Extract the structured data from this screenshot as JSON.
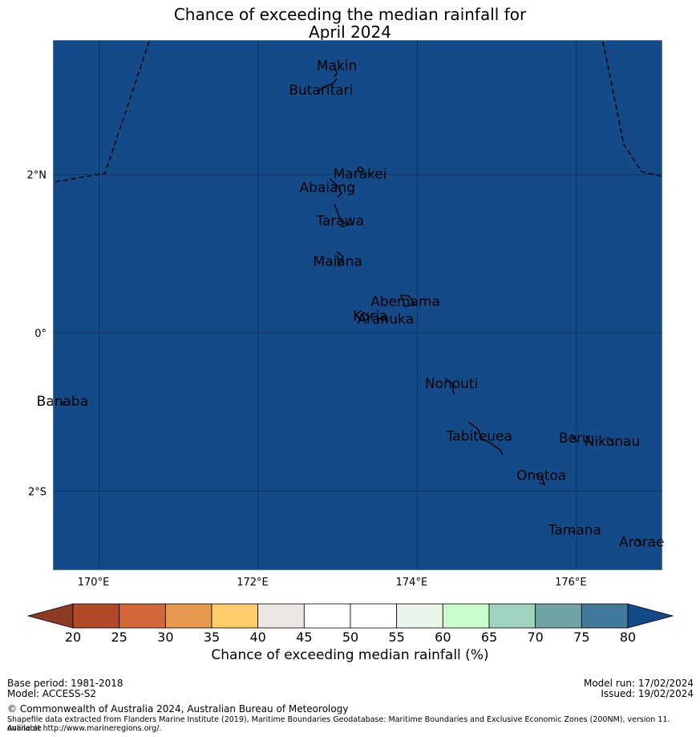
{
  "title": {
    "line1": "Chance of exceeding the median rainfall for",
    "line2": "April 2024"
  },
  "map": {
    "background_color": "#134a87",
    "lon_ticks": [
      {
        "lon": 170,
        "label": "170°E"
      },
      {
        "lon": 172,
        "label": "172°E"
      },
      {
        "lon": 174,
        "label": "174°E"
      },
      {
        "lon": 176,
        "label": "176°E"
      }
    ],
    "lat_ticks": [
      {
        "lat": 2,
        "label": "2°N"
      },
      {
        "lat": 0,
        "label": "0°"
      },
      {
        "lat": -2,
        "label": "2°S"
      }
    ],
    "places": [
      {
        "name": "Makin",
        "lon": 172.99,
        "lat": 3.38
      },
      {
        "name": "Butaritari",
        "lon": 172.79,
        "lat": 3.07
      },
      {
        "name": "Marakei",
        "lon": 173.28,
        "lat": 2.01
      },
      {
        "name": "Abaiang",
        "lon": 172.87,
        "lat": 1.84
      },
      {
        "name": "Tarawa",
        "lon": 173.03,
        "lat": 1.42
      },
      {
        "name": "Maiana",
        "lon": 173.0,
        "lat": 0.91
      },
      {
        "name": "Abemama",
        "lon": 173.85,
        "lat": 0.4
      },
      {
        "name": "Kuria",
        "lon": 173.41,
        "lat": 0.22
      },
      {
        "name": "Aranuka",
        "lon": 173.6,
        "lat": 0.18
      },
      {
        "name": "Nonouti",
        "lon": 174.43,
        "lat": -0.64
      },
      {
        "name": "Banaba",
        "lon": 169.54,
        "lat": -0.86
      },
      {
        "name": "Tabiteuea",
        "lon": 174.78,
        "lat": -1.3
      },
      {
        "name": "Beru",
        "lon": 175.98,
        "lat": -1.33
      },
      {
        "name": "Nikunau",
        "lon": 176.45,
        "lat": -1.37
      },
      {
        "name": "Onotoa",
        "lon": 175.56,
        "lat": -1.8
      },
      {
        "name": "Tamana",
        "lon": 175.98,
        "lat": -2.49
      },
      {
        "name": "Arorae",
        "lon": 176.82,
        "lat": -2.64
      }
    ],
    "extent": {
      "lon_min": 169.42,
      "lon_max": 177.08,
      "lat_min": -3.0,
      "lat_max": 3.7
    }
  },
  "colorbar": {
    "ticks": [
      "20",
      "25",
      "30",
      "35",
      "40",
      "45",
      "50",
      "55",
      "60",
      "65",
      "70",
      "75",
      "80"
    ],
    "colors": [
      "#b24a29",
      "#d2673a",
      "#e6994e",
      "#fecc6a",
      "#ebe6e1",
      "#ffffff",
      "#ffffff",
      "#e8f5e8",
      "#cbfccb",
      "#9ed3bd",
      "#6fa3a5",
      "#427a9a"
    ],
    "low_extend_color": "#8c3a24",
    "high_extend_color": "#134a87",
    "label": "Chance of exceeding median rainfall (%)"
  },
  "footer": {
    "base_period": "Base period: 1981-2018",
    "model": "Model: ACCESS-S2",
    "model_run": "Model run: 17/02/2024",
    "issued": "Issued: 19/02/2024",
    "copyright": "© Commonwealth of Australia 2024, Australian Bureau of Meteorology",
    "source_line1": "Shapefile data extracted from Flanders Marine Institute (2019), Maritime Boundaries Geodatabase: Maritime Boundaries and Exclusive Economic Zones (200NM), version 11. Available",
    "source_line2": "online at http://www.marineregions.org/."
  }
}
